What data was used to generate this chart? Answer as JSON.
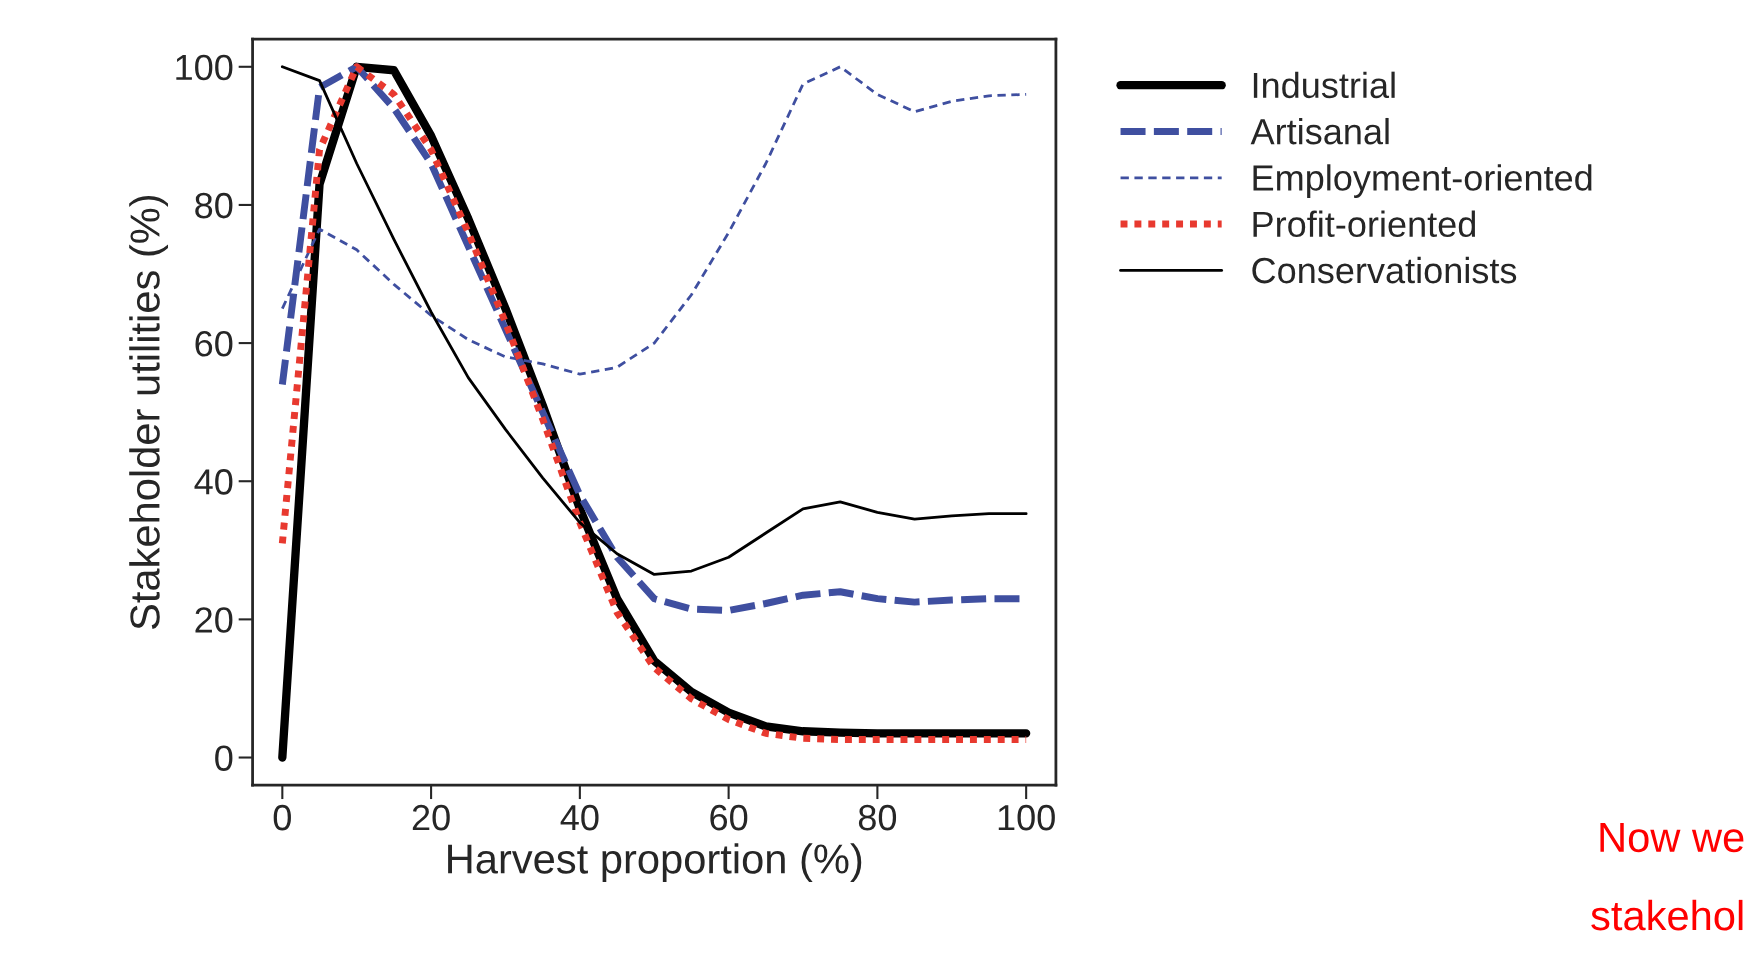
{
  "chart_data": {
    "type": "line",
    "xlabel": "Harvest proportion (%)",
    "ylabel": "Stakeholder utilities (%)",
    "x": [
      0,
      5,
      10,
      15,
      20,
      25,
      30,
      35,
      40,
      45,
      50,
      55,
      60,
      65,
      70,
      75,
      80,
      85,
      90,
      95,
      100
    ],
    "xlim": [
      -4,
      104
    ],
    "ylim": [
      -4,
      104
    ],
    "xticks": [
      0,
      20,
      40,
      60,
      80,
      100
    ],
    "yticks": [
      0,
      20,
      40,
      60,
      80,
      100
    ],
    "grid": false,
    "legend": "right",
    "marker": "none",
    "series": [
      {
        "name": "Industrial",
        "color": "#000000",
        "line_style": "solid",
        "values": [
          0,
          83,
          100,
          99.5,
          90,
          78,
          65,
          51,
          36,
          23,
          14,
          9.5,
          6.5,
          4.5,
          3.8,
          3.6,
          3.5,
          3.5,
          3.5,
          3.5,
          3.5
        ]
      },
      {
        "name": "Artisanal",
        "color": "#3f4fa0",
        "line_style": "dashed",
        "values": [
          54,
          97,
          100,
          94,
          86,
          74,
          62,
          50,
          38,
          29,
          23,
          21.5,
          21.3,
          22.3,
          23.5,
          24,
          23,
          22.5,
          22.8,
          23,
          23
        ]
      },
      {
        "name": "Employment-oriented",
        "color": "#3f4fa0",
        "line_style": "dashed",
        "values": [
          65,
          76.5,
          73.5,
          68.5,
          64,
          60.5,
          58,
          57,
          55.5,
          56.5,
          60,
          67,
          76,
          86,
          97.5,
          100,
          96,
          93.5,
          95,
          95.8,
          96
        ]
      },
      {
        "name": "Profit-oriented",
        "color": "#e8392f",
        "line_style": "dotted",
        "values": [
          31,
          88,
          100,
          96,
          88,
          76,
          63,
          49,
          34,
          21,
          13,
          8.5,
          5.5,
          3.5,
          2.8,
          2.6,
          2.6,
          2.6,
          2.6,
          2.6,
          2.6
        ]
      },
      {
        "name": "Conservationists",
        "color": "#000000",
        "line_style": "solid",
        "values": [
          100,
          98,
          86,
          75,
          64.5,
          55,
          47.5,
          40.5,
          34,
          29.5,
          26.5,
          27,
          29,
          32.5,
          36,
          37,
          35.5,
          34.5,
          35,
          35.3,
          35.3
        ]
      }
    ],
    "annotations": [
      "Now we",
      "stakehol"
    ]
  }
}
